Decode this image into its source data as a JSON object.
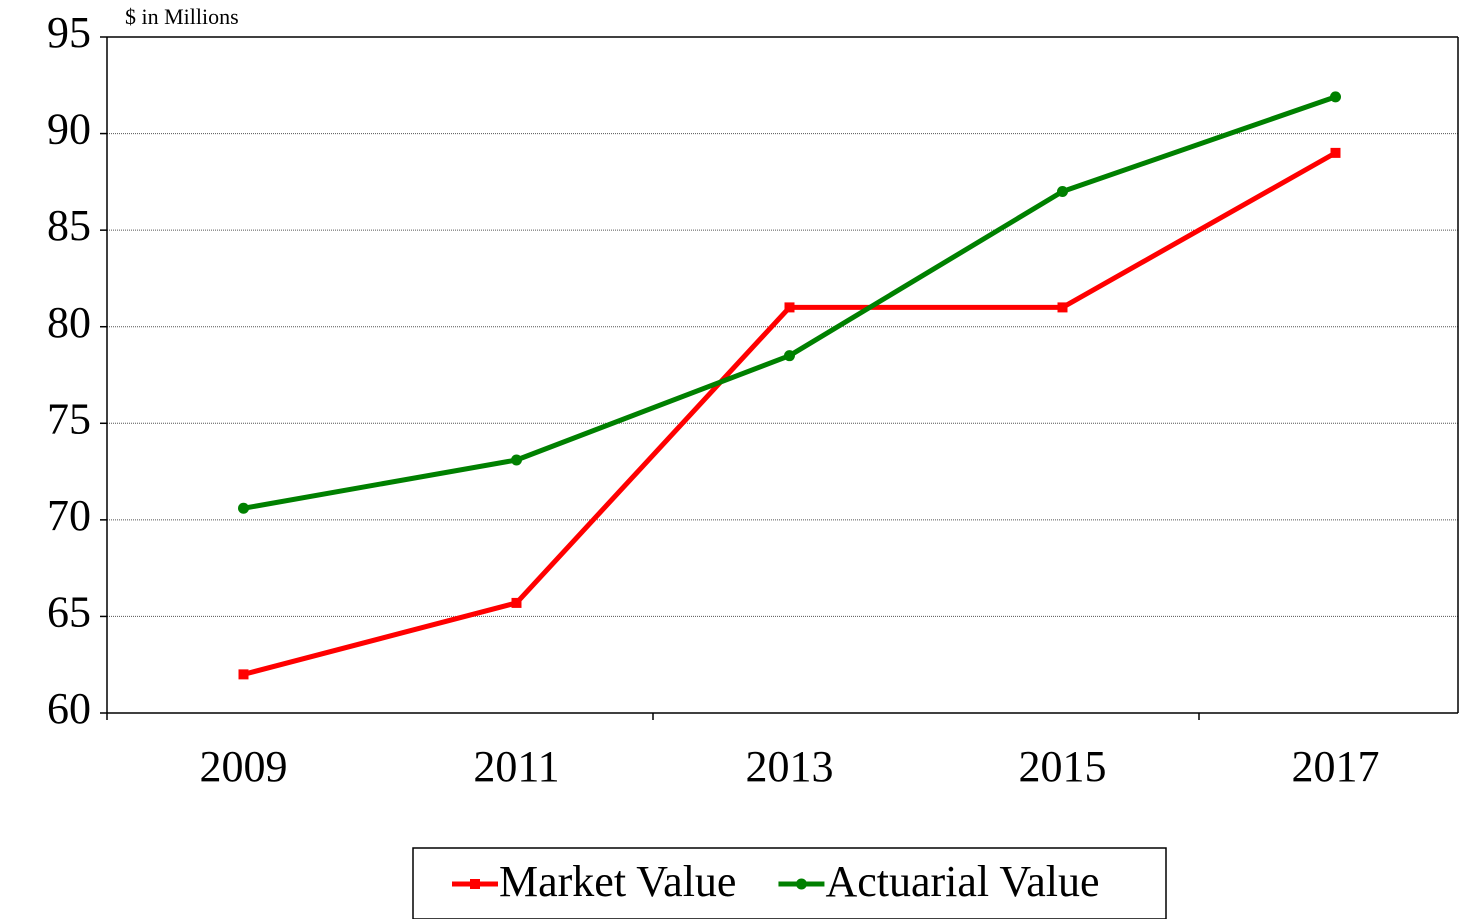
{
  "chart_data": {
    "type": "line",
    "y_axis_label": "$ in Millions",
    "categories": [
      "2009",
      "2011",
      "2013",
      "2015",
      "2017"
    ],
    "series": [
      {
        "name": "Market Value",
        "color": "#ff0000",
        "marker": "square",
        "values": [
          62,
          65.7,
          81,
          81,
          89
        ]
      },
      {
        "name": "Actuarial Value",
        "color": "#008000",
        "marker": "circle",
        "values": [
          70.6,
          73.1,
          78.5,
          87,
          91.9
        ]
      }
    ],
    "ylim": [
      60,
      95
    ],
    "yticks": [
      60,
      65,
      70,
      75,
      80,
      85,
      90,
      95
    ],
    "grid": true,
    "legend": "bottom"
  }
}
